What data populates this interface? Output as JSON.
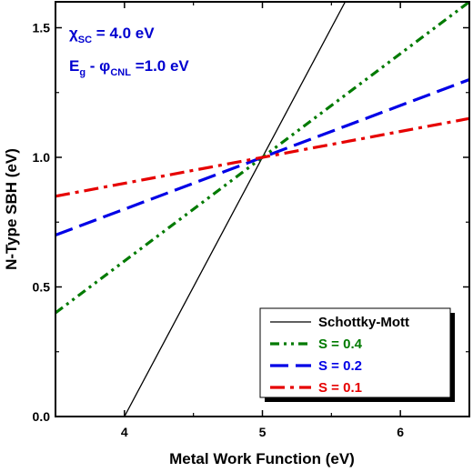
{
  "chart_data": {
    "type": "line",
    "title": "",
    "xlabel": "Metal Work Function (eV)",
    "ylabel": "N-Type SBH (eV)",
    "xlim": [
      3.5,
      6.5
    ],
    "ylim": [
      0.0,
      1.6
    ],
    "x_ticks": [
      4,
      5,
      6
    ],
    "x_tick_labels": [
      "4",
      "5",
      "6"
    ],
    "y_ticks": [
      0.0,
      0.5,
      1.0,
      1.5
    ],
    "y_tick_labels": [
      "0.0",
      "0.5",
      "1.0",
      "1.5"
    ],
    "grid": false,
    "legend_position": "bottom-right",
    "annotations": {
      "line1": {
        "main": "χ",
        "sub": "SC",
        "rest": " = 4.0 eV"
      },
      "line2": {
        "a": "E",
        "a_sub": "g",
        "b": " - φ",
        "b_sub": "CNL",
        "rest": " =1.0 eV"
      }
    },
    "series": [
      {
        "name": "Schottky-Mott",
        "color": "#000000",
        "dash": "solid",
        "x": [
          4.0,
          5.6
        ],
        "y": [
          0.0,
          1.6
        ]
      },
      {
        "name": "S = 0.4",
        "color": "#007a00",
        "dash": "dash-dot-dot",
        "x": [
          3.5,
          6.5
        ],
        "y": [
          0.4,
          1.6
        ]
      },
      {
        "name": "S = 0.2",
        "color": "#0000e6",
        "dash": "dash",
        "x": [
          3.5,
          6.5
        ],
        "y": [
          0.7,
          1.3
        ]
      },
      {
        "name": "S = 0.1",
        "color": "#e60000",
        "dash": "dash-dot",
        "x": [
          3.5,
          6.5
        ],
        "y": [
          0.85,
          1.15
        ]
      }
    ]
  }
}
